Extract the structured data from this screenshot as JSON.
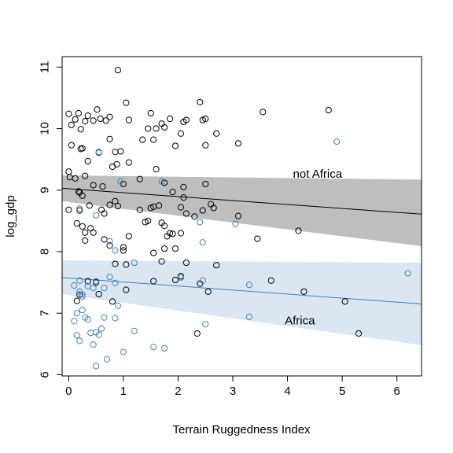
{
  "chart_data": {
    "type": "scatter",
    "xlabel": "Terrain Ruggedness Index",
    "ylabel": "log_gdp",
    "xlim": [
      -0.12,
      6.45
    ],
    "ylim": [
      5.98,
      11.17
    ],
    "x_ticks": [
      0,
      1,
      2,
      3,
      4,
      5,
      6
    ],
    "y_ticks": [
      6,
      7,
      8,
      9,
      10,
      11
    ],
    "grid": false,
    "legend": "none",
    "annotations": [
      {
        "text": "not Africa",
        "x": 4.1,
        "y": 9.2,
        "color": "#000000"
      },
      {
        "text": "Africa",
        "x": 3.95,
        "y": 6.82,
        "color": "#4682B4"
      }
    ],
    "series": [
      {
        "group": "not-africa",
        "color": "#000000",
        "band_color": "#bebebe",
        "fit": {
          "x0": -0.12,
          "y0": 9.03,
          "x1": 6.45,
          "y1": 8.61
        },
        "band": {
          "upper": [
            [
              -0.12,
              9.24
            ],
            [
              6.45,
              9.17
            ]
          ],
          "lower": [
            [
              -0.12,
              8.82
            ],
            [
              6.45,
              8.09
            ]
          ]
        },
        "points": [
          [
            0.0,
            10.24
          ],
          [
            0.05,
            10.06
          ],
          [
            0.12,
            10.15
          ],
          [
            0.18,
            10.25
          ],
          [
            0.22,
            9.99
          ],
          [
            0.3,
            10.12
          ],
          [
            0.35,
            10.21
          ],
          [
            0.45,
            10.13
          ],
          [
            0.52,
            10.31
          ],
          [
            0.58,
            10.16
          ],
          [
            0.68,
            10.13
          ],
          [
            0.75,
            10.19
          ],
          [
            0.9,
            10.95
          ],
          [
            1.05,
            10.42
          ],
          [
            1.1,
            10.14
          ],
          [
            0.05,
            9.73
          ],
          [
            0.22,
            9.67
          ],
          [
            0.25,
            9.68
          ],
          [
            0.35,
            9.47
          ],
          [
            0.55,
            9.61
          ],
          [
            0.75,
            9.83
          ],
          [
            0.85,
            9.62
          ],
          [
            0.95,
            9.63
          ],
          [
            0.8,
            9.38
          ],
          [
            0.88,
            9.42
          ],
          [
            1.1,
            9.45
          ],
          [
            0.0,
            9.3
          ],
          [
            0.02,
            9.21
          ],
          [
            0.12,
            9.19
          ],
          [
            0.3,
            9.23
          ],
          [
            0.45,
            9.08
          ],
          [
            0.62,
            9.06
          ],
          [
            0.18,
            8.98
          ],
          [
            0.2,
            8.96
          ],
          [
            0.25,
            8.91
          ],
          [
            0.0,
            8.68
          ],
          [
            0.2,
            8.67
          ],
          [
            0.38,
            8.75
          ],
          [
            0.6,
            8.68
          ],
          [
            0.65,
            8.62
          ],
          [
            0.75,
            8.76
          ],
          [
            0.85,
            8.82
          ],
          [
            0.9,
            8.74
          ],
          [
            1.0,
            9.1
          ],
          [
            0.15,
            8.46
          ],
          [
            0.25,
            8.41
          ],
          [
            0.3,
            8.31
          ],
          [
            0.3,
            8.18
          ],
          [
            0.4,
            8.38
          ],
          [
            0.45,
            8.31
          ],
          [
            0.65,
            8.2
          ],
          [
            0.75,
            8.1
          ],
          [
            0.85,
            7.8
          ],
          [
            1.0,
            8.02
          ],
          [
            1.05,
            7.79
          ],
          [
            1.0,
            8.07
          ],
          [
            1.1,
            8.25
          ],
          [
            1.3,
            9.18
          ],
          [
            1.35,
            9.82
          ],
          [
            1.45,
            10.0
          ],
          [
            1.5,
            10.25
          ],
          [
            1.55,
            9.82
          ],
          [
            1.6,
            10.0
          ],
          [
            1.7,
            10.08
          ],
          [
            1.75,
            10.02
          ],
          [
            1.85,
            10.16
          ],
          [
            1.95,
            9.72
          ],
          [
            2.05,
            9.92
          ],
          [
            2.1,
            10.11
          ],
          [
            2.15,
            10.14
          ],
          [
            2.4,
            10.43
          ],
          [
            2.45,
            10.14
          ],
          [
            2.5,
            10.16
          ],
          [
            2.5,
            9.73
          ],
          [
            2.7,
            9.92
          ],
          [
            3.1,
            9.76
          ],
          [
            3.55,
            10.27
          ],
          [
            4.75,
            10.3
          ],
          [
            1.6,
            9.34
          ],
          [
            1.75,
            9.12
          ],
          [
            1.9,
            8.97
          ],
          [
            2.1,
            9.05
          ],
          [
            2.5,
            9.1
          ],
          [
            1.3,
            8.68
          ],
          [
            1.4,
            8.48
          ],
          [
            1.45,
            8.5
          ],
          [
            1.5,
            8.71
          ],
          [
            1.55,
            8.73
          ],
          [
            1.65,
            8.75
          ],
          [
            1.7,
            8.47
          ],
          [
            1.75,
            8.42
          ],
          [
            1.8,
            8.25
          ],
          [
            1.85,
            8.3
          ],
          [
            1.9,
            8.29
          ],
          [
            1.95,
            8.05
          ],
          [
            2.05,
            8.72
          ],
          [
            2.1,
            8.88
          ],
          [
            2.15,
            8.62
          ],
          [
            2.3,
            8.57
          ],
          [
            2.45,
            8.67
          ],
          [
            2.6,
            8.77
          ],
          [
            2.65,
            8.71
          ],
          [
            2.05,
            8.3
          ],
          [
            1.7,
            7.84
          ],
          [
            1.75,
            8.05
          ],
          [
            2.15,
            7.82
          ],
          [
            2.7,
            7.78
          ],
          [
            1.55,
            7.98
          ],
          [
            1.55,
            7.52
          ],
          [
            1.95,
            7.54
          ],
          [
            2.05,
            7.6
          ],
          [
            2.4,
            7.48
          ],
          [
            2.55,
            7.35
          ],
          [
            3.1,
            8.58
          ],
          [
            3.45,
            8.21
          ],
          [
            4.2,
            8.34
          ],
          [
            3.7,
            7.53
          ],
          [
            4.3,
            7.35
          ],
          [
            5.05,
            7.19
          ],
          [
            5.3,
            6.67
          ],
          [
            2.35,
            6.67
          ],
          [
            0.8,
            7.19
          ],
          [
            1.05,
            7.38
          ],
          [
            0.35,
            7.52
          ],
          [
            0.5,
            7.5
          ],
          [
            0.55,
            7.31
          ],
          [
            0.2,
            7.3
          ],
          [
            0.15,
            7.2
          ]
        ]
      },
      {
        "group": "africa",
        "color": "#4682B4",
        "band_color": "#dae6f1",
        "fit": {
          "x0": -0.12,
          "y0": 7.58,
          "x1": 6.45,
          "y1": 7.15
        },
        "band": {
          "upper": [
            [
              -0.12,
              7.86
            ],
            [
              6.45,
              7.82
            ]
          ],
          "lower": [
            [
              -0.12,
              7.31
            ],
            [
              6.45,
              6.48
            ]
          ]
        },
        "points": [
          [
            0.55,
            9.62
          ],
          [
            0.95,
            9.14
          ],
          [
            1.7,
            9.14
          ],
          [
            4.9,
            9.79
          ],
          [
            0.2,
            8.7
          ],
          [
            0.5,
            8.59
          ],
          [
            0.75,
            8.17
          ],
          [
            0.85,
            8.02
          ],
          [
            1.2,
            7.82
          ],
          [
            2.4,
            8.48
          ],
          [
            2.45,
            8.15
          ],
          [
            3.05,
            8.45
          ],
          [
            0.1,
            7.45
          ],
          [
            0.2,
            7.53
          ],
          [
            0.25,
            7.3
          ],
          [
            0.35,
            7.44
          ],
          [
            0.45,
            7.41
          ],
          [
            0.5,
            7.52
          ],
          [
            0.65,
            7.41
          ],
          [
            0.75,
            7.59
          ],
          [
            0.85,
            7.49
          ],
          [
            0.2,
            7.35
          ],
          [
            0.25,
            7.27
          ],
          [
            0.15,
            7.0
          ],
          [
            0.25,
            7.05
          ],
          [
            0.3,
            6.93
          ],
          [
            0.35,
            6.9
          ],
          [
            0.4,
            6.68
          ],
          [
            0.5,
            6.69
          ],
          [
            0.55,
            6.65
          ],
          [
            0.6,
            6.75
          ],
          [
            0.65,
            6.93
          ],
          [
            0.85,
            6.92
          ],
          [
            0.9,
            7.12
          ],
          [
            1.2,
            6.71
          ],
          [
            0.1,
            6.87
          ],
          [
            0.15,
            6.64
          ],
          [
            0.2,
            6.55
          ],
          [
            0.45,
            6.49
          ],
          [
            0.5,
            6.14
          ],
          [
            0.7,
            6.25
          ],
          [
            1.0,
            6.37
          ],
          [
            1.55,
            6.45
          ],
          [
            1.75,
            6.43
          ],
          [
            2.05,
            7.58
          ],
          [
            2.45,
            7.53
          ],
          [
            2.5,
            6.82
          ],
          [
            3.3,
            7.46
          ],
          [
            3.3,
            6.94
          ],
          [
            6.2,
            7.65
          ]
        ]
      }
    ]
  }
}
